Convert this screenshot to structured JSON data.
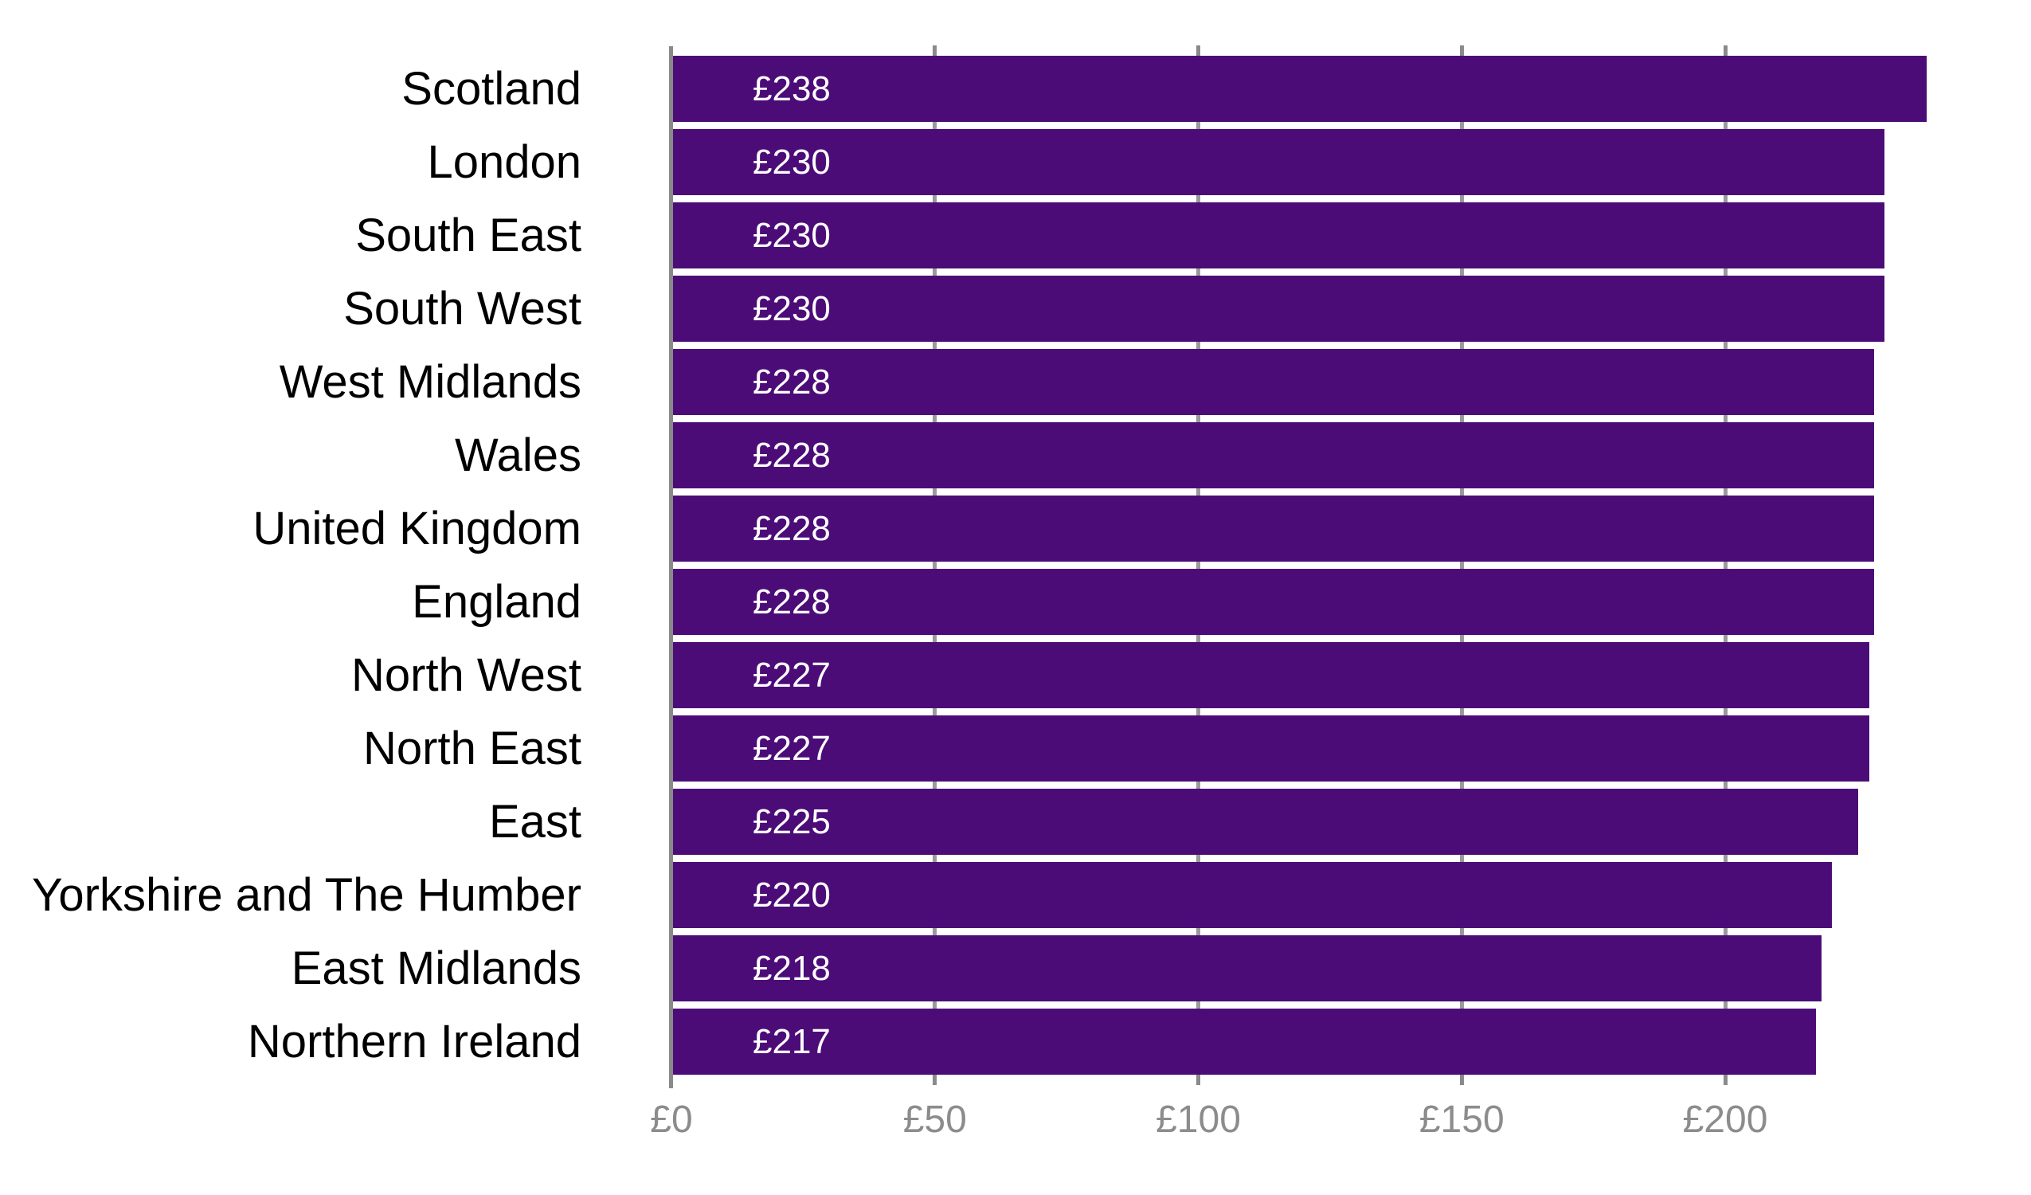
{
  "chart_data": {
    "type": "bar",
    "orientation": "horizontal",
    "title": "",
    "xlabel": "",
    "ylabel": "",
    "categories": [
      "Scotland",
      "London",
      "South East",
      "South West",
      "West Midlands",
      "Wales",
      "United Kingdom",
      "England",
      "North West",
      "North East",
      "East",
      "Yorkshire and The Humber",
      "East Midlands",
      "Northern Ireland"
    ],
    "values": [
      238,
      230,
      230,
      230,
      228,
      228,
      228,
      228,
      227,
      227,
      225,
      220,
      218,
      217
    ],
    "value_labels": [
      "£238",
      "£230",
      "£230",
      "£230",
      "£228",
      "£228",
      "£228",
      "£228",
      "£227",
      "£227",
      "£225",
      "£220",
      "£218",
      "£217"
    ],
    "currency_symbol": "£",
    "x_ticks": [
      {
        "value": 0,
        "label": "£0"
      },
      {
        "value": 50,
        "label": "£50"
      },
      {
        "value": 100,
        "label": "£100"
      },
      {
        "value": 150,
        "label": "£150"
      },
      {
        "value": 200,
        "label": "£200"
      }
    ],
    "xlim": [
      0,
      258
    ],
    "grid": "vertical gridline marks at 50-unit intervals, visible in gaps between bars and as small ticks above and below the plot area",
    "legend": "none",
    "colors": {
      "bar": "#4C0C78",
      "bar_value_text": "#ffffff",
      "category_text": "#000000",
      "axis_tick_text": "#8C8C8C",
      "axis_line": "#8A8A8A",
      "tick_mark": "#8A8A8A",
      "gridline": "#9A9A9A",
      "background": "#ffffff"
    }
  }
}
